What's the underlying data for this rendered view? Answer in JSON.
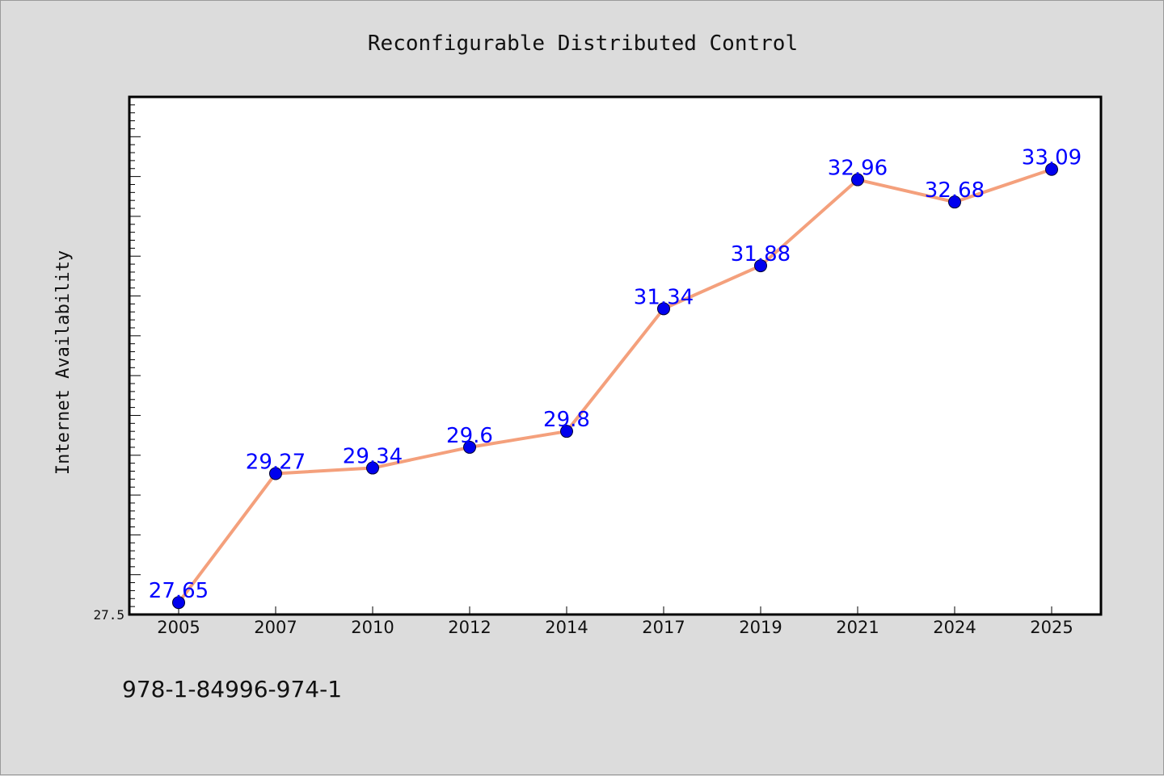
{
  "chart_data": {
    "type": "line",
    "title": "Reconfigurable Distributed Control",
    "xlabel": "",
    "ylabel": "Internet Availability",
    "categories": [
      "2005",
      "2007",
      "2010",
      "2012",
      "2014",
      "2017",
      "2019",
      "2021",
      "2024",
      "2025"
    ],
    "series": [
      {
        "values": [
          27.65,
          29.27,
          29.34,
          29.6,
          29.8,
          31.34,
          31.88,
          32.96,
          32.68,
          33.09
        ],
        "labels": [
          "27.65",
          "29.27",
          "29.34",
          "29.6",
          "29.8",
          "31.34",
          "31.88",
          "32.96",
          "32.68",
          "33.09"
        ]
      }
    ],
    "y_tick_labels": [
      "27.5"
    ],
    "ylim": [
      27.5,
      34.0
    ],
    "grid": false,
    "colors": {
      "line": "#f4a07c",
      "marker": "#0000ee",
      "data_label": "#0000ff",
      "background": "#dcdcdc",
      "plot_area": "#ffffff"
    }
  },
  "footer": {
    "isbn": "978-1-84996-974-1"
  }
}
